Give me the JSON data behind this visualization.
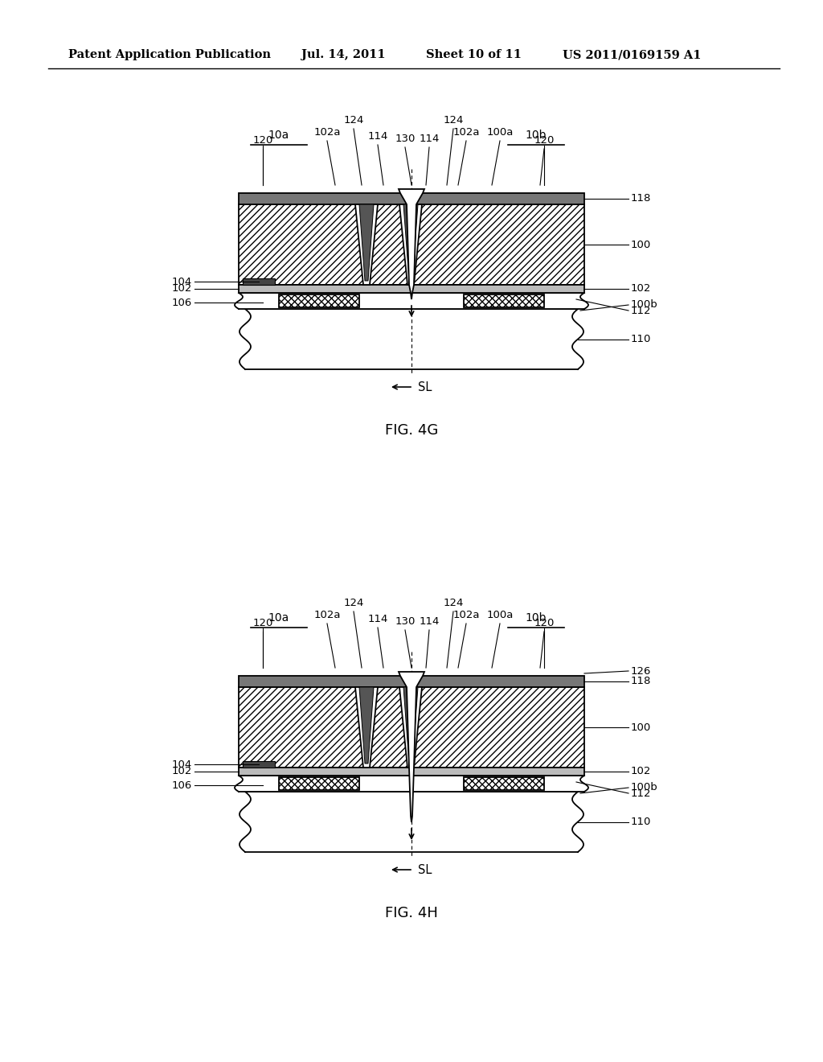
{
  "bg_color": "#ffffff",
  "header_text": "Patent Application Publication",
  "header_date": "Jul. 14, 2011",
  "header_sheet": "Sheet 10 of 11",
  "header_patent": "US 2011/0169159 A1",
  "fig_4g_label": "FIG. 4G",
  "fig_4h_label": "FIG. 4H",
  "sl_label": "SL",
  "lc": "#000000",
  "hatch_diag": "////",
  "hatch_cross": "xxxx",
  "gray_dark": "#555555",
  "gray_med": "#999999",
  "gray_light": "#cccccc",
  "white": "#ffffff"
}
